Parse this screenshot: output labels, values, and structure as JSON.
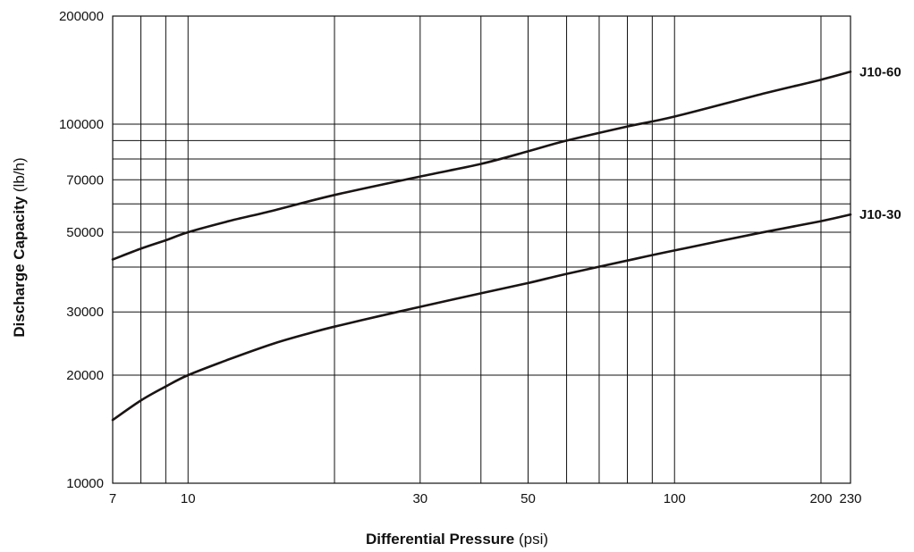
{
  "chart_data": {
    "type": "line",
    "x_scale": "log",
    "y_scale": "log",
    "xlim": [
      7,
      230
    ],
    "ylim": [
      10000,
      200000
    ],
    "x_ticks": [
      7,
      10,
      30,
      50,
      100,
      200,
      230
    ],
    "x_tick_labels": [
      "7",
      "10",
      "30",
      "50",
      "100",
      "200",
      "230"
    ],
    "x_grid": [
      8,
      9,
      10,
      20,
      30,
      40,
      50,
      60,
      70,
      80,
      90,
      100,
      200
    ],
    "y_ticks": [
      10000,
      20000,
      30000,
      50000,
      70000,
      100000,
      200000
    ],
    "y_tick_labels": [
      "10000",
      "20000",
      "30000",
      "50000",
      "70000",
      "100000",
      "200000"
    ],
    "y_grid": [
      20000,
      30000,
      40000,
      50000,
      60000,
      70000,
      80000,
      90000,
      100000
    ],
    "grid": true,
    "xlabel": {
      "main": "Differential Pressure",
      "unit": "(psi)"
    },
    "ylabel": {
      "main": "Discharge Capacity",
      "unit": "(lb/h)"
    },
    "series": [
      {
        "name": "J10-60",
        "x": [
          7,
          8,
          9,
          10,
          12,
          15,
          20,
          30,
          40,
          50,
          60,
          80,
          100,
          150,
          200,
          230
        ],
        "y": [
          42000,
          45000,
          47500,
          50000,
          53500,
          57500,
          63500,
          71500,
          77500,
          84000,
          90000,
          98500,
          105000,
          121000,
          133000,
          140000
        ]
      },
      {
        "name": "J10-30",
        "x": [
          7,
          8,
          9,
          10,
          12,
          15,
          18,
          20,
          25,
          30,
          40,
          50,
          60,
          80,
          100,
          150,
          200,
          230
        ],
        "y": [
          15000,
          17000,
          18600,
          20000,
          22000,
          24500,
          26300,
          27300,
          29300,
          31000,
          33800,
          36100,
          38300,
          41700,
          44500,
          49800,
          53700,
          56000
        ]
      }
    ]
  }
}
